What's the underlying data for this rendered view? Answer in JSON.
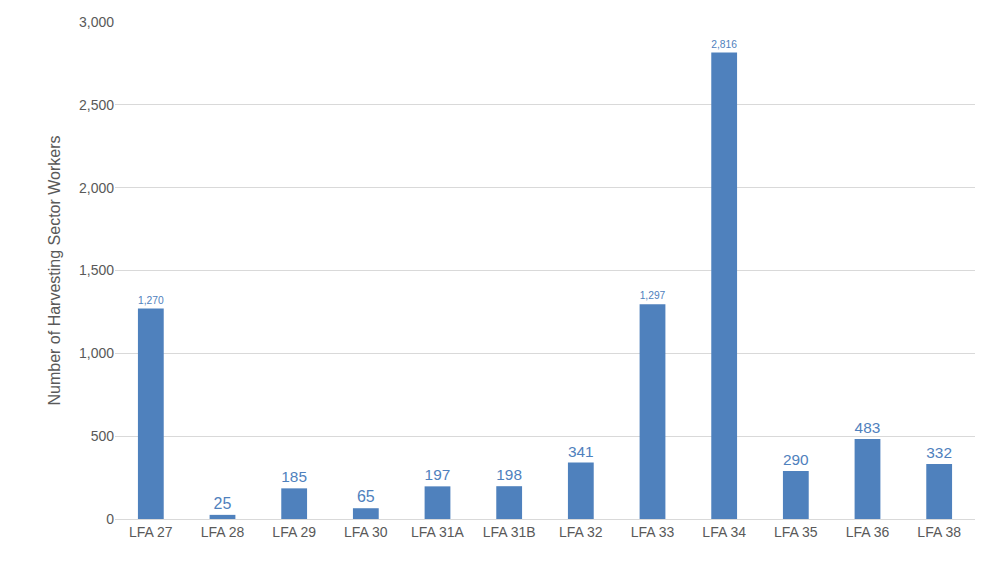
{
  "chart_data": {
    "type": "bar",
    "y_label": "Number of Harvesting Sector Workers",
    "categories": [
      "LFA 27",
      "LFA 28",
      "LFA 29",
      "LFA 30",
      "LFA 31A",
      "LFA 31B",
      "LFA 32",
      "LFA 33",
      "LFA 34",
      "LFA 35",
      "LFA 36",
      "LFA 38"
    ],
    "values": [
      1270,
      25,
      185,
      65,
      197,
      198,
      341,
      1297,
      2816,
      290,
      483,
      332
    ],
    "value_labels": [
      "1,270",
      "25",
      "185",
      "65",
      "197",
      "198",
      "341",
      "1,297",
      "2,816",
      "290",
      "483",
      "332"
    ],
    "color": "#4f81bd",
    "ylim": [
      0,
      3000
    ],
    "yticks": [
      0,
      500,
      {
        "value": 1000,
        "label": "1,000"
      },
      {
        "value": 1500,
        "label": "1,500"
      },
      {
        "value": 2000,
        "label": "2,000"
      },
      {
        "value": 2500,
        "label": "2,500"
      },
      {
        "value": 3000,
        "label": "3,000"
      }
    ],
    "grid": true,
    "data_labels": true
  }
}
